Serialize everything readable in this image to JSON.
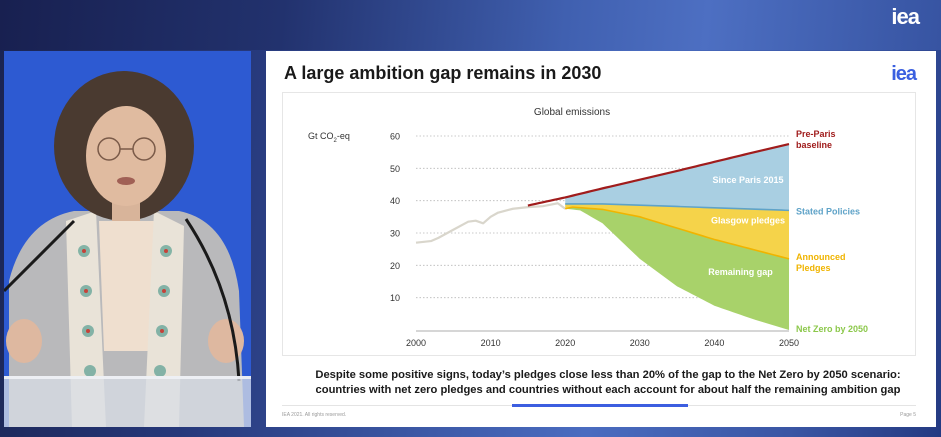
{
  "stream": {
    "corner_logo": "iea"
  },
  "slide": {
    "title": "A large ambition gap remains in 2030",
    "logo": "iea",
    "caption_line1": "Despite some positive signs, today’s pledges close less than 20% of the gap to the Net Zero by 2050 scenario:",
    "caption_line2": "countries with net zero pledges and countries without each account for about half the remaining ambition gap",
    "footer_left": "IEA 2021. All rights reserved.",
    "footer_right": "Page 5"
  },
  "colors": {
    "historical": "#d9d6cc",
    "pre_paris": "#a01c1c",
    "since_paris_fill": "#a9cfe2",
    "stated_line": "#5fa3c8",
    "glasgow_fill": "#f5d34a",
    "announced_line": "#f0b400",
    "remaining_fill": "#a8d26a",
    "label_since": "#ffffff",
    "label_stated": "#5fa3c8",
    "label_announced": "#f0b400",
    "label_netzero": "#8cc84b",
    "label_preparis": "#a01c1c",
    "accent": "#3c5ee0"
  },
  "chart_data": {
    "type": "area",
    "title": "Global emissions",
    "xlabel": "",
    "ylabel": "Gt CO₂-eq",
    "xlim": [
      2000,
      2050
    ],
    "ylim": [
      0,
      60
    ],
    "x_ticks": [
      2000,
      2010,
      2020,
      2030,
      2040,
      2050
    ],
    "y_ticks": [
      10,
      20,
      30,
      40,
      50,
      60
    ],
    "grid": "horizontal-dotted",
    "series": [
      {
        "name": "Historical",
        "type": "line",
        "x": [
          2000,
          2002,
          2003,
          2005,
          2007,
          2008,
          2009,
          2010,
          2011,
          2013,
          2015,
          2017,
          2019,
          2020
        ],
        "values": [
          27,
          27.5,
          28.5,
          31,
          33.5,
          33.8,
          33,
          35,
          36.3,
          37.5,
          38,
          38.3,
          39.2,
          37.5
        ]
      },
      {
        "name": "Pre-Paris baseline",
        "type": "line",
        "x": [
          2015,
          2020,
          2025,
          2030,
          2035,
          2040,
          2045,
          2050
        ],
        "values": [
          38.5,
          41,
          43.8,
          46.5,
          49.2,
          52,
          54.8,
          57.5
        ]
      },
      {
        "name": "Stated Policies",
        "type": "line",
        "x": [
          2020,
          2025,
          2030,
          2035,
          2040,
          2045,
          2050
        ],
        "values": [
          39,
          39,
          38.6,
          38.2,
          37.8,
          37.4,
          37
        ]
      },
      {
        "name": "Announced Pledges",
        "type": "line",
        "x": [
          2020,
          2021,
          2025,
          2030,
          2035,
          2040,
          2045,
          2050
        ],
        "values": [
          37.5,
          38,
          37.3,
          35,
          31.5,
          28,
          25,
          22
        ]
      },
      {
        "name": "Net Zero by 2050",
        "type": "line",
        "x": [
          2020,
          2022,
          2025,
          2030,
          2035,
          2040,
          2045,
          2050
        ],
        "values": [
          37.5,
          37,
          33,
          22,
          13.5,
          7.5,
          3.5,
          0
        ]
      }
    ],
    "areas": [
      {
        "name": "Since Paris 2015",
        "between": [
          "Pre-Paris baseline",
          "Stated Policies"
        ]
      },
      {
        "name": "Glasgow pledges",
        "between": [
          "Stated Policies",
          "Announced Pledges"
        ]
      },
      {
        "name": "Remaining gap",
        "between": [
          "Announced Pledges",
          "Net Zero by 2050"
        ]
      }
    ],
    "series_labels": [
      {
        "text": "Pre-Paris",
        "text2": "baseline",
        "series": "Pre-Paris baseline"
      },
      {
        "text": "Stated Policies",
        "series": "Stated Policies"
      },
      {
        "text": "Announced",
        "text2": "Pledges",
        "series": "Announced Pledges"
      },
      {
        "text": "Net Zero by 2050",
        "series": "Net Zero by 2050"
      }
    ],
    "area_labels": [
      "Since Paris 2015",
      "Glasgow pledges",
      "Remaining gap"
    ],
    "legend": "inline-right"
  }
}
